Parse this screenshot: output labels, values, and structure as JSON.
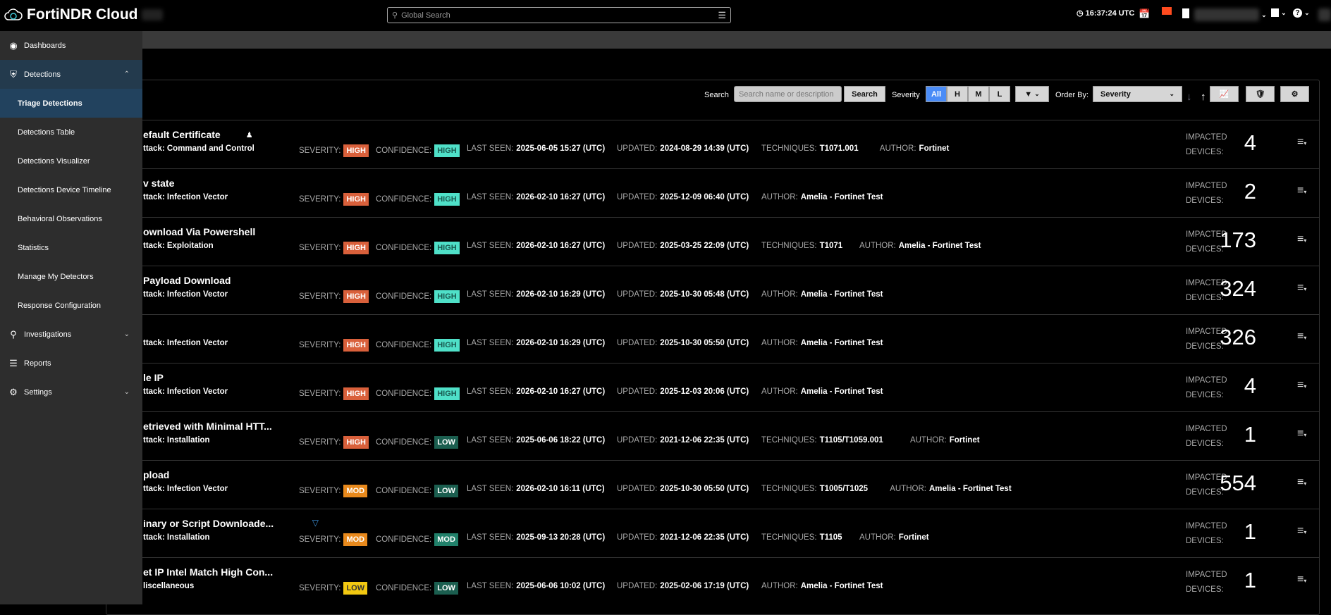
{
  "header": {
    "app_title": "FortiNDR Cloud",
    "search_placeholder": "Global Search",
    "time": "16:37:24 UTC"
  },
  "sidebar": {
    "items": [
      {
        "label": "Dashboards",
        "icon": "dashboard-icon",
        "type": "section"
      },
      {
        "label": "Detections",
        "icon": "shield-icon",
        "type": "section",
        "expanded": true
      },
      {
        "label": "Triage Detections",
        "type": "sub",
        "active": true
      },
      {
        "label": "Detections Table",
        "type": "sub"
      },
      {
        "label": "Detections Visualizer",
        "type": "sub"
      },
      {
        "label": "Detections Device Timeline",
        "type": "sub"
      },
      {
        "label": "Behavioral Observations",
        "type": "sub"
      },
      {
        "label": "Statistics",
        "type": "sub"
      },
      {
        "label": "Manage My Detectors",
        "type": "sub"
      },
      {
        "label": "Response Configuration",
        "type": "sub"
      },
      {
        "label": "Investigations",
        "icon": "search-icon",
        "type": "section",
        "expandable": true
      },
      {
        "label": "Reports",
        "icon": "layers-icon",
        "type": "section"
      },
      {
        "label": "Settings",
        "icon": "gear-icon",
        "type": "section",
        "expandable": true
      }
    ]
  },
  "toolbar": {
    "search_label": "Search",
    "search_placeholder": "Search name or description",
    "search_button": "Search",
    "severity_label": "Severity",
    "severity_options": [
      "All",
      "H",
      "M",
      "L"
    ],
    "severity_selected": "All",
    "order_label": "Order By:",
    "order_value": "Severity"
  },
  "labels": {
    "severity": "SEVERITY:",
    "confidence": "CONFIDENCE:",
    "last_seen": "LAST SEEN:",
    "updated": "UPDATED:",
    "techniques": "TECHNIQUES:",
    "author": "AUTHOR:",
    "impacted1": "IMPACTED",
    "impacted2": "DEVICES:"
  },
  "colors": {
    "HIGH_sev": "#d9603b",
    "MOD_sev": "#e8891c",
    "LOW_sev": "#f2c811",
    "HIGH_conf": "#4fe0c8",
    "MOD_conf": "#21806a",
    "LOW_conf": "#1b5e4f",
    "accent": "#4a8cf7"
  },
  "detections": [
    {
      "title": "efault Certificate",
      "title_icon": "user-gear-icon",
      "category": "ttack: Command and Control",
      "severity": "HIGH",
      "confidence": "HIGH",
      "last_seen": "2025-06-05 15:27 (UTC)",
      "updated": "2024-08-29 14:39 (UTC)",
      "techniques": "T1071.001",
      "author": "Fortinet",
      "devices": "4"
    },
    {
      "title": "v state",
      "category": "ttack: Infection Vector",
      "severity": "HIGH",
      "confidence": "HIGH",
      "last_seen": "2026-02-10 16:27 (UTC)",
      "updated": "2025-12-09 06:40 (UTC)",
      "author": "Amelia - Fortinet Test",
      "devices": "2"
    },
    {
      "title": "ownload Via Powershell",
      "category": "ttack: Exploitation",
      "severity": "HIGH",
      "confidence": "HIGH",
      "last_seen": "2026-02-10 16:27 (UTC)",
      "updated": "2025-03-25 22:09 (UTC)",
      "techniques": "T1071",
      "author": "Amelia - Fortinet Test",
      "devices": "173"
    },
    {
      "title": "Payload Download",
      "category": "ttack: Infection Vector",
      "severity": "HIGH",
      "confidence": "HIGH",
      "last_seen": "2026-02-10 16:29 (UTC)",
      "updated": "2025-10-30 05:48 (UTC)",
      "author": "Amelia - Fortinet Test",
      "devices": "324"
    },
    {
      "title": "",
      "category": "ttack: Infection Vector",
      "severity": "HIGH",
      "confidence": "HIGH",
      "last_seen": "2026-02-10 16:29 (UTC)",
      "updated": "2025-10-30 05:50 (UTC)",
      "author": "Amelia - Fortinet Test",
      "devices": "326"
    },
    {
      "title": "le IP",
      "category": "ttack: Infection Vector",
      "severity": "HIGH",
      "confidence": "HIGH",
      "last_seen": "2026-02-10 16:27 (UTC)",
      "updated": "2025-12-03 20:06 (UTC)",
      "author": "Amelia - Fortinet Test",
      "devices": "4"
    },
    {
      "title": "etrieved with Minimal HTT...",
      "category": "ttack: Installation",
      "severity": "HIGH",
      "confidence": "LOW",
      "last_seen": "2025-06-06 18:22 (UTC)",
      "updated": "2021-12-06 22:35 (UTC)",
      "techniques": "T1105/T1059.001",
      "author": "Fortinet",
      "devices": "1"
    },
    {
      "title": "pload",
      "category": "ttack: Infection Vector",
      "severity": "MOD",
      "confidence": "LOW",
      "last_seen": "2026-02-10 16:11 (UTC)",
      "updated": "2025-10-30 05:50 (UTC)",
      "techniques": "T1005/T1025",
      "author": "Amelia - Fortinet Test",
      "devices": "554"
    },
    {
      "title": "inary or Script Downloade...",
      "title_icon": "filter-icon",
      "category": "ttack: Installation",
      "severity": "MOD",
      "confidence": "MOD",
      "last_seen": "2025-09-13 20:28 (UTC)",
      "updated": "2021-12-06 22:35 (UTC)",
      "techniques": "T1105",
      "author": "Fortinet",
      "devices": "1"
    },
    {
      "title": "et IP Intel Match High Con...",
      "category": "liscellaneous",
      "severity": "LOW",
      "confidence": "LOW",
      "last_seen": "2025-06-06 10:02 (UTC)",
      "updated": "2025-02-06 17:19 (UTC)",
      "author": "Amelia - Fortinet Test",
      "devices": "1"
    }
  ]
}
